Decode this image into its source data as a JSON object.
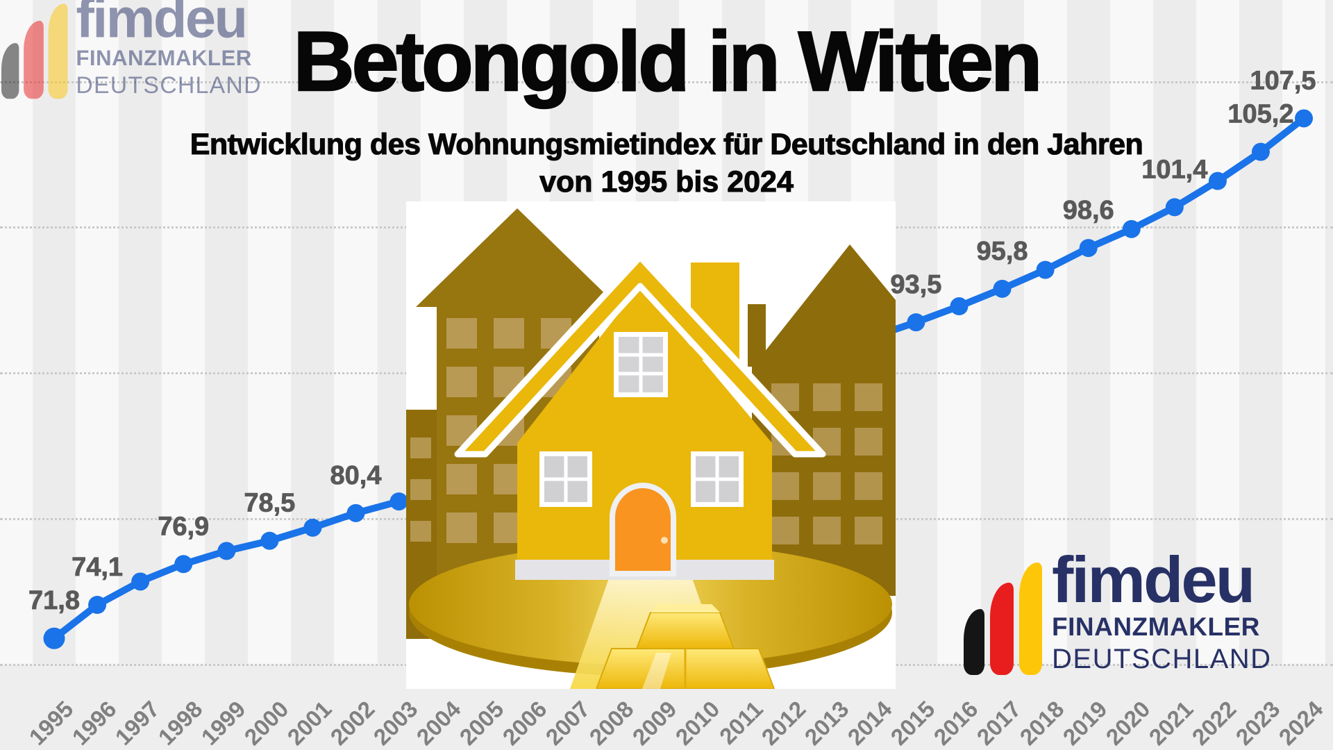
{
  "header": {
    "title": "Betongold in Witten",
    "subtitle_line1": "Entwicklung des Wohnungsmietindex für Deutschland in den Jahren",
    "subtitle_line2": "von 1995 bis 2024"
  },
  "brand_logo": {
    "wordmark": "fimdeu",
    "subline1": "FINANZMAKLER",
    "subline2": "DEUTSCHLAND",
    "bar_colors": {
      "black": "#151515",
      "red": "#e81d1d",
      "yellow": "#fdc608"
    },
    "text_color": "#273166"
  },
  "chart_data": {
    "type": "line",
    "title": "Betongold in Witten",
    "subtitle": "Entwicklung des Wohnungsmietindex für Deutschland in den Jahren von 1995 bis 2024",
    "years": [
      1995,
      1996,
      1997,
      1998,
      1999,
      2000,
      2001,
      2002,
      2003,
      2004,
      2005,
      2006,
      2007,
      2008,
      2009,
      2010,
      2011,
      2012,
      2013,
      2014,
      2015,
      2016,
      2017,
      2018,
      2019,
      2020,
      2021,
      2022,
      2023,
      2024
    ],
    "series": [
      {
        "name": "Wohnungsmietindex Deutschland",
        "values": [
          71.8,
          74.1,
          75.7,
          76.9,
          77.8,
          78.5,
          79.4,
          80.4,
          81.2,
          82.1,
          83.1,
          84.1,
          85.1,
          86.2,
          87.2,
          88.3,
          89.3,
          90.4,
          91.5,
          92.5,
          93.5,
          94.6,
          95.8,
          97.1,
          98.6,
          99.9,
          101.4,
          103.2,
          105.2,
          107.5
        ]
      }
    ],
    "data_labels_shown": [
      {
        "year": 1995,
        "label": "71,8"
      },
      {
        "year": 1996,
        "label": "74,1"
      },
      {
        "year": 1998,
        "label": "76,9"
      },
      {
        "year": 2000,
        "label": "78,5"
      },
      {
        "year": 2002,
        "label": "80,4"
      },
      {
        "year": 2015,
        "label": "93,5"
      },
      {
        "year": 2017,
        "label": "95,8"
      },
      {
        "year": 2019,
        "label": "98,6"
      },
      {
        "year": 2021,
        "label": "101,4"
      },
      {
        "year": 2023,
        "label": "105,2"
      },
      {
        "year": 2024,
        "label": "107,5"
      }
    ],
    "years_covered_by_center_graphic": [
      2004,
      2005,
      2006,
      2007,
      2008,
      2009,
      2010,
      2011,
      2012,
      2013,
      2014
    ],
    "values_estimated_for_unlabeled_years": true,
    "line_color": "#1a73e8",
    "point_color": "#1a73e8",
    "value_label_color": "#595959",
    "x_axis_label_color": "#808080",
    "x_label_rotation_deg": -45,
    "gridlines": {
      "values": [
        70,
        80,
        90,
        100,
        110
      ],
      "style": "dotted",
      "color": "#c9c9c9"
    },
    "ylim": [
      66,
      112
    ],
    "legend": "none"
  },
  "illustration": {
    "name": "golden-house-and-buildings-on-gold-coin-with-gold-bars",
    "background": "#ffffff",
    "colors": {
      "house_body": "#eab70b",
      "door": "#f8941f",
      "side_buildings": "#97750f",
      "building_windows": "#b89a54",
      "platform_gold": "#c79d08",
      "gold_bar": "#ffd83e"
    }
  }
}
